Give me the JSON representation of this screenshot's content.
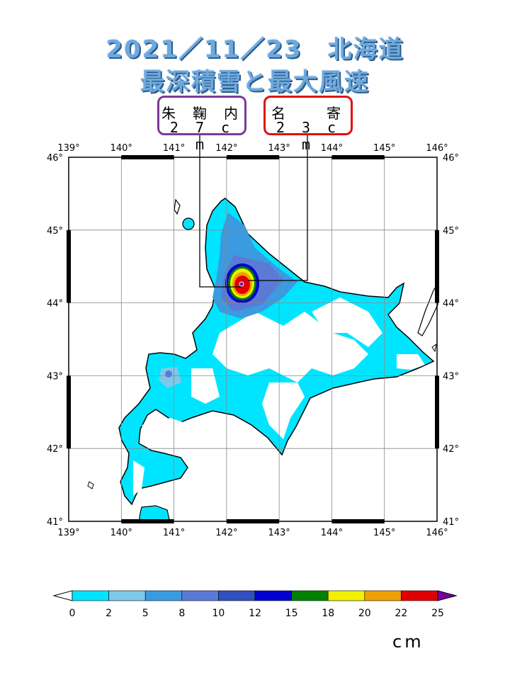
{
  "title": {
    "line1": "2021／11／23　北海道",
    "line2": "最深積雪と最大風速"
  },
  "stations": [
    {
      "name": "朱鞠内",
      "value": "27cm",
      "border_color": "#7a3a9a"
    },
    {
      "name": "名寄",
      "value": "23cm",
      "border_color": "#e01010"
    }
  ],
  "map": {
    "lon_ticks": [
      "139°",
      "140°",
      "141°",
      "142°",
      "143°",
      "144°",
      "145°",
      "146°"
    ],
    "lat_ticks": [
      "46°",
      "45°",
      "44°",
      "43°",
      "42°",
      "41°"
    ]
  },
  "colorbar": {
    "ticks": [
      "0",
      "2",
      "5",
      "8",
      "10",
      "12",
      "15",
      "18",
      "20",
      "22",
      "25"
    ],
    "colors": [
      "#00e5ff",
      "#7ec8e8",
      "#3a9be0",
      "#5a7ad6",
      "#3050c0",
      "#0000d0",
      "#008000",
      "#f0f000",
      "#f0a000",
      "#e00000"
    ],
    "unit": "cm"
  }
}
